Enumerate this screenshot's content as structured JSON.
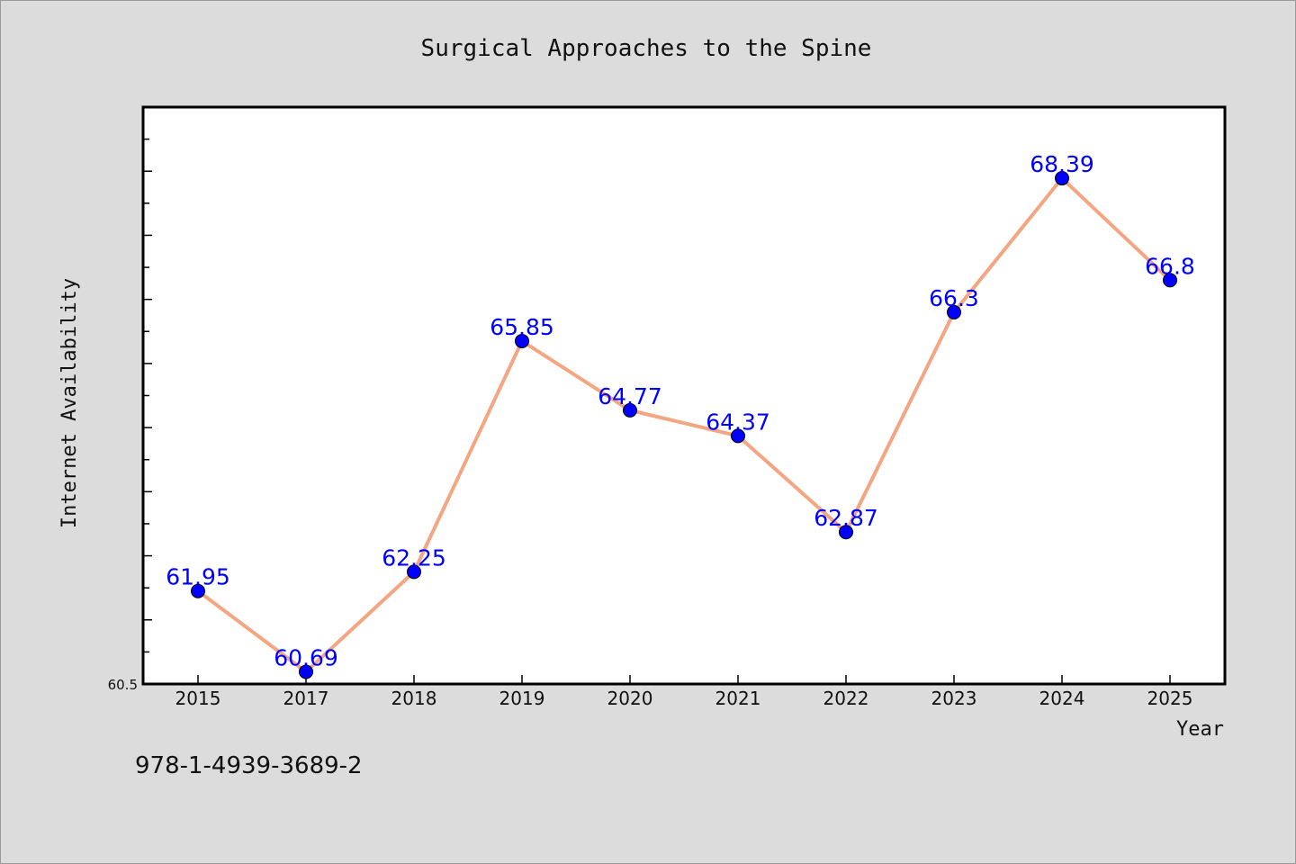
{
  "chart_data": {
    "type": "line",
    "title": "Surgical Approaches to the Spine",
    "xlabel": "Year",
    "ylabel": "Internet Availability",
    "categories": [
      "2015",
      "2017",
      "2018",
      "2019",
      "2020",
      "2021",
      "2022",
      "2023",
      "2024",
      "2025"
    ],
    "series": [
      {
        "values": [
          61.95,
          60.69,
          62.25,
          65.85,
          64.77,
          64.37,
          62.87,
          66.3,
          68.39,
          66.8
        ],
        "labels": [
          "61.95",
          "60.69",
          "62.25",
          "65.85",
          "64.77",
          "64.37",
          "62.87",
          "66.3",
          "68.39",
          "66.8"
        ],
        "line_color": "#f4a582",
        "marker_color": "#0000ff"
      }
    ],
    "ylim": [
      60.5,
      69.5
    ],
    "y_min_tick_label": "60.5",
    "grid": false,
    "legend": "none"
  },
  "footer": {
    "isbn": "978-1-4939-3689-2"
  }
}
